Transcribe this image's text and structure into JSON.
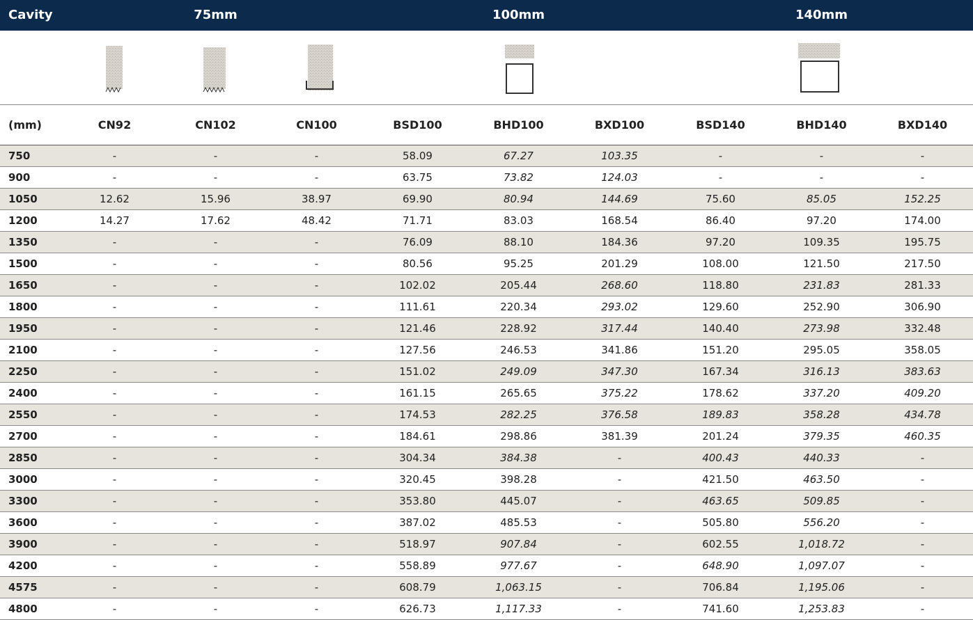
{
  "header": {
    "cavity": "Cavity",
    "groups": [
      "75mm",
      "100mm",
      "140mm"
    ]
  },
  "columns": [
    "(mm)",
    "CN92",
    "CN102",
    "CN100",
    "BSD100",
    "BHD100",
    "BXD100",
    "BSD140",
    "BHD140",
    "BXD140"
  ],
  "rows": [
    [
      "750",
      "-",
      "-",
      "-",
      "58.09",
      "67.27",
      "103.35",
      "-",
      "-",
      "-"
    ],
    [
      "900",
      "-",
      "-",
      "-",
      "63.75",
      "73.82",
      "124.03",
      "-",
      "-",
      "-"
    ],
    [
      "1050",
      "12.62",
      "15.96",
      "38.97",
      "69.90",
      "80.94",
      "144.69",
      "75.60",
      "85.05",
      "152.25"
    ],
    [
      "1200",
      "14.27",
      "17.62",
      "48.42",
      "71.71",
      "83.03",
      "168.54",
      "86.40",
      "97.20",
      "174.00"
    ],
    [
      "1350",
      "-",
      "-",
      "-",
      "76.09",
      "88.10",
      "184.36",
      "97.20",
      "109.35",
      "195.75"
    ],
    [
      "1500",
      "-",
      "-",
      "-",
      "80.56",
      "95.25",
      "201.29",
      "108.00",
      "121.50",
      "217.50"
    ],
    [
      "1650",
      "-",
      "-",
      "-",
      "102.02",
      "205.44",
      "268.60",
      "118.80",
      "231.83",
      "281.33"
    ],
    [
      "1800",
      "-",
      "-",
      "-",
      "111.61",
      "220.34",
      "293.02",
      "129.60",
      "252.90",
      "306.90"
    ],
    [
      "1950",
      "-",
      "-",
      "-",
      "121.46",
      "228.92",
      "317.44",
      "140.40",
      "273.98",
      "332.48"
    ],
    [
      "2100",
      "-",
      "-",
      "-",
      "127.56",
      "246.53",
      "341.86",
      "151.20",
      "295.05",
      "358.05"
    ],
    [
      "2250",
      "-",
      "-",
      "-",
      "151.02",
      "249.09",
      "347.30",
      "167.34",
      "316.13",
      "383.63"
    ],
    [
      "2400",
      "-",
      "-",
      "-",
      "161.15",
      "265.65",
      "375.22",
      "178.62",
      "337.20",
      "409.20"
    ],
    [
      "2550",
      "-",
      "-",
      "-",
      "174.53",
      "282.25",
      "376.58",
      "189.83",
      "358.28",
      "434.78"
    ],
    [
      "2700",
      "-",
      "-",
      "-",
      "184.61",
      "298.86",
      "381.39",
      "201.24",
      "379.35",
      "460.35"
    ],
    [
      "2850",
      "-",
      "-",
      "-",
      "304.34",
      "384.38",
      "-",
      "400.43",
      "440.33",
      "-"
    ],
    [
      "3000",
      "-",
      "-",
      "-",
      "320.45",
      "398.28",
      "-",
      "421.50",
      "463.50",
      "-"
    ],
    [
      "3300",
      "-",
      "-",
      "-",
      "353.80",
      "445.07",
      "-",
      "463.65",
      "509.85",
      "-"
    ],
    [
      "3600",
      "-",
      "-",
      "-",
      "387.02",
      "485.53",
      "-",
      "505.80",
      "556.20",
      "-"
    ],
    [
      "3900",
      "-",
      "-",
      "-",
      "518.97",
      "907.84",
      "-",
      "602.55",
      "1,018.72",
      "-"
    ],
    [
      "4200",
      "-",
      "-",
      "-",
      "558.89",
      "977.67",
      "-",
      "648.90",
      "1,097.07",
      "-"
    ],
    [
      "4575",
      "-",
      "-",
      "-",
      "608.79",
      "1,063.15",
      "-",
      "706.84",
      "1,195.06",
      "-"
    ],
    [
      "4800",
      "-",
      "-",
      "-",
      "626.73",
      "1,117.33",
      "-",
      "741.60",
      "1,253.83",
      "-"
    ]
  ],
  "italic": [
    [
      5,
      6
    ],
    [
      5,
      6
    ],
    [
      5,
      6,
      8,
      9
    ],
    [],
    [],
    [],
    [
      6,
      8
    ],
    [
      6
    ],
    [
      6,
      8
    ],
    [],
    [
      5,
      6,
      8,
      9
    ],
    [
      6,
      8,
      9
    ],
    [
      5,
      6,
      7,
      8,
      9
    ],
    [
      8,
      9
    ],
    [
      5,
      7,
      8
    ],
    [
      8
    ],
    [
      7,
      8
    ],
    [
      8
    ],
    [
      5,
      8
    ],
    [
      5,
      7,
      8
    ],
    [
      5,
      8
    ],
    [
      5,
      8
    ]
  ]
}
